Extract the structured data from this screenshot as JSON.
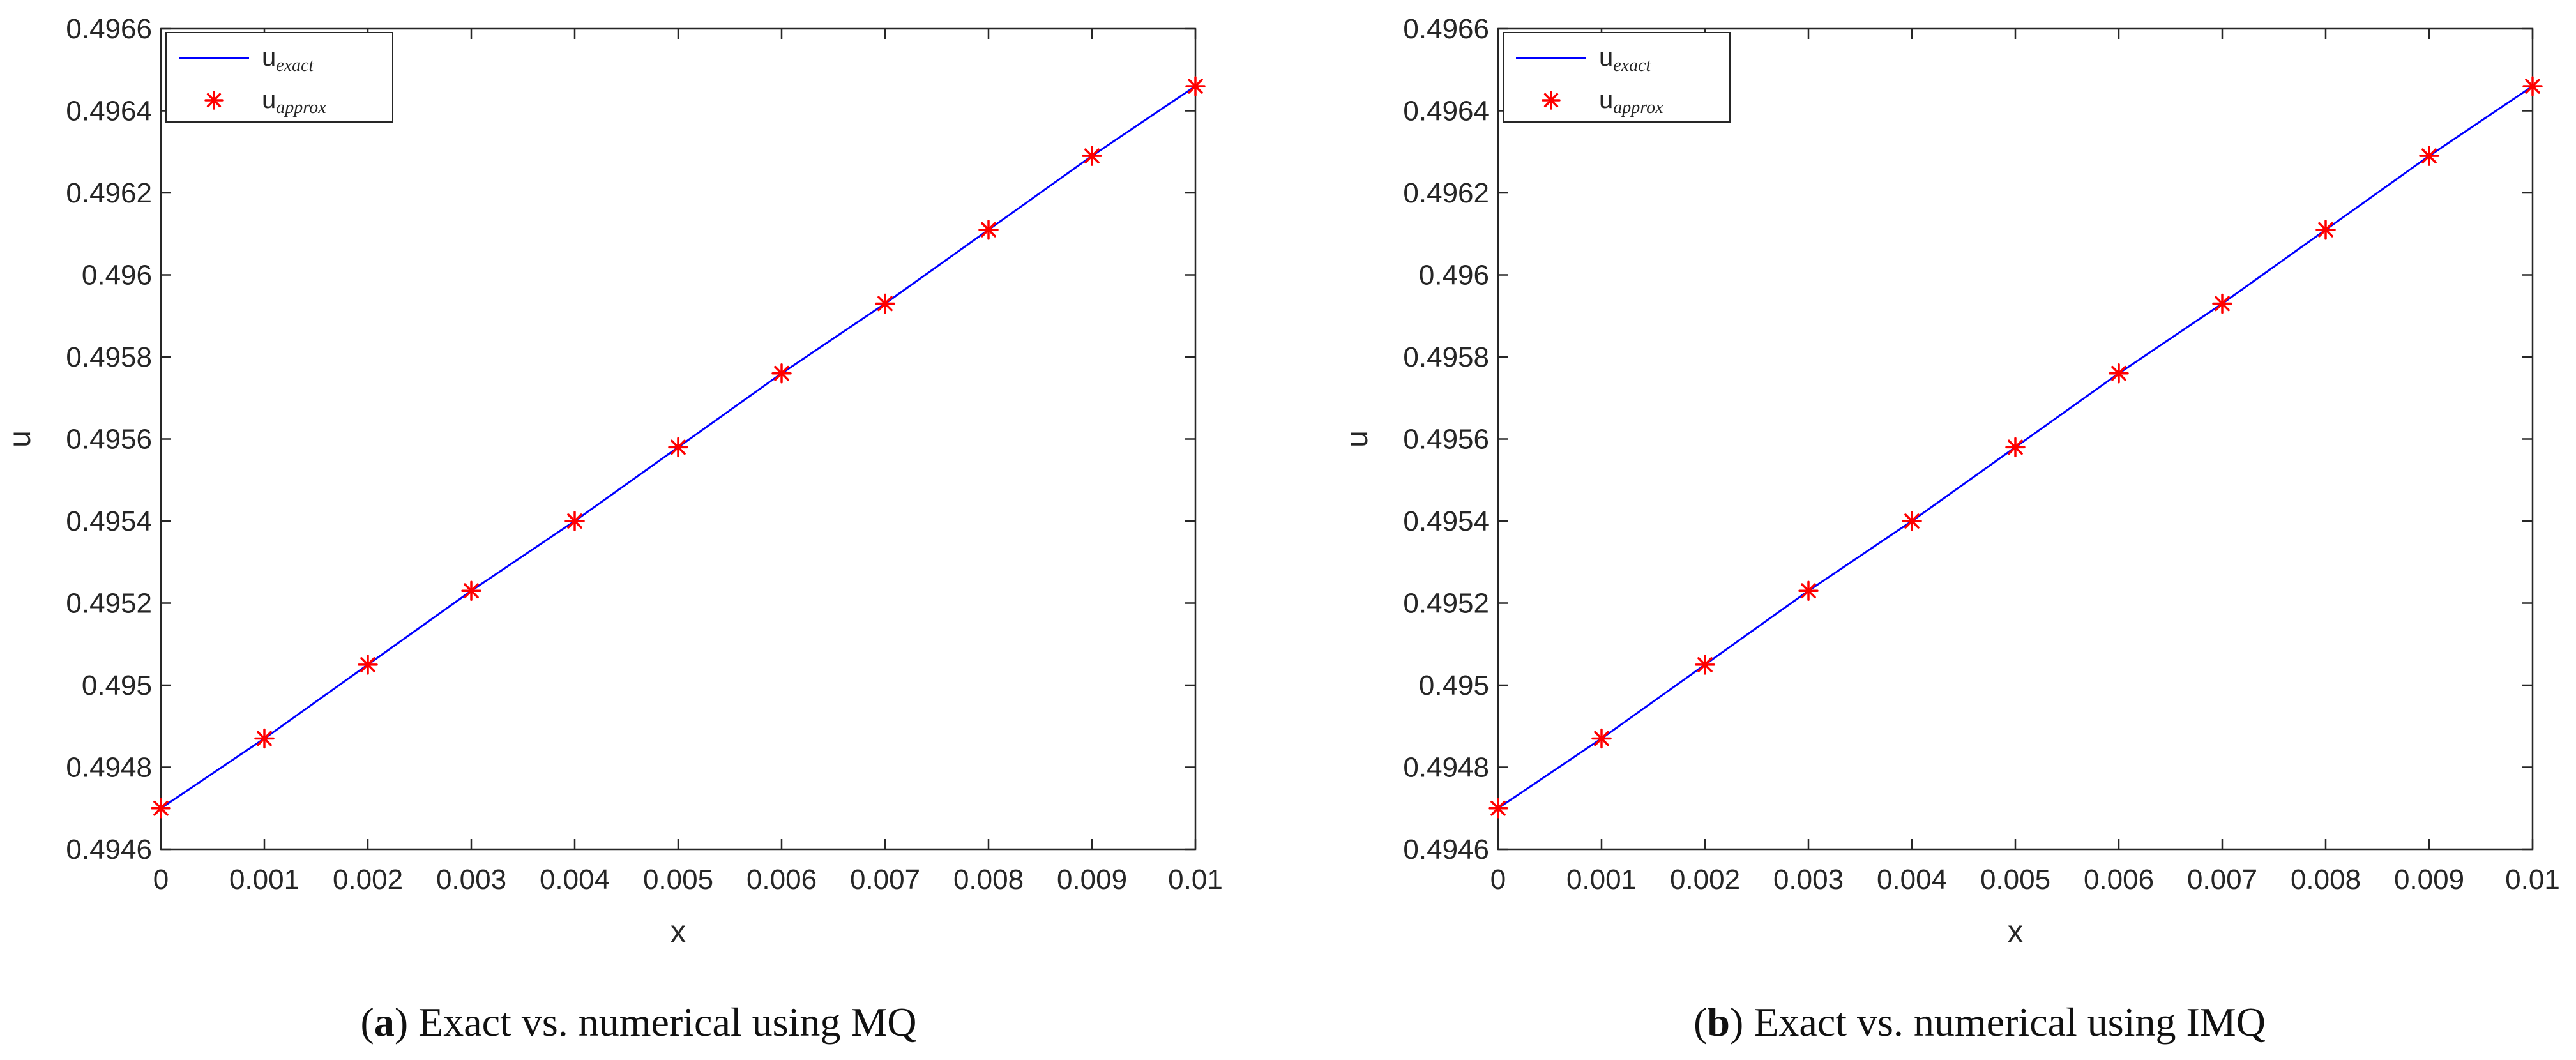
{
  "chart_data": [
    {
      "type": "line",
      "panel_letter": "a",
      "caption": "Exact vs. numerical using MQ",
      "xlabel": "x",
      "ylabel": "u",
      "xlim": [
        0,
        0.01
      ],
      "ylim": [
        0.4946,
        0.4966
      ],
      "x_ticks": [
        "0",
        "0.001",
        "0.002",
        "0.003",
        "0.004",
        "0.005",
        "0.006",
        "0.007",
        "0.008",
        "0.009",
        "0.01"
      ],
      "y_ticks": [
        "0.4946",
        "0.4948",
        "0.495",
        "0.4952",
        "0.4954",
        "0.4956",
        "0.4958",
        "0.496",
        "0.4962",
        "0.4964",
        "0.4966"
      ],
      "legend": {
        "position": "top-left",
        "entries": [
          {
            "base": "u",
            "sub": "exact"
          },
          {
            "base": "u",
            "sub": "approx"
          }
        ]
      },
      "series": [
        {
          "name": "u_exact",
          "style": "line",
          "color": "#0000ff",
          "x": [
            0,
            0.001,
            0.002,
            0.003,
            0.004,
            0.005,
            0.006,
            0.007,
            0.008,
            0.009,
            0.01
          ],
          "values": [
            0.4947,
            0.49487,
            0.49505,
            0.49523,
            0.4954,
            0.49558,
            0.49576,
            0.49593,
            0.49611,
            0.49629,
            0.49646
          ]
        },
        {
          "name": "u_approx",
          "style": "marker",
          "marker": "*",
          "color": "#ff0000",
          "x": [
            0,
            0.001,
            0.002,
            0.003,
            0.004,
            0.005,
            0.006,
            0.007,
            0.008,
            0.009,
            0.01
          ],
          "values": [
            0.4947,
            0.49487,
            0.49505,
            0.49523,
            0.4954,
            0.49558,
            0.49576,
            0.49593,
            0.49611,
            0.49629,
            0.49646
          ]
        }
      ]
    },
    {
      "type": "line",
      "panel_letter": "b",
      "caption": "Exact vs. numerical using IMQ",
      "xlabel": "x",
      "ylabel": "u",
      "xlim": [
        0,
        0.01
      ],
      "ylim": [
        0.4946,
        0.4966
      ],
      "x_ticks": [
        "0",
        "0.001",
        "0.002",
        "0.003",
        "0.004",
        "0.005",
        "0.006",
        "0.007",
        "0.008",
        "0.009",
        "0.01"
      ],
      "y_ticks": [
        "0.4946",
        "0.4948",
        "0.495",
        "0.4952",
        "0.4954",
        "0.4956",
        "0.4958",
        "0.496",
        "0.4962",
        "0.4964",
        "0.4966"
      ],
      "legend": {
        "position": "top-left",
        "entries": [
          {
            "base": "u",
            "sub": "exact"
          },
          {
            "base": "u",
            "sub": "approx"
          }
        ]
      },
      "series": [
        {
          "name": "u_exact",
          "style": "line",
          "color": "#0000ff",
          "x": [
            0,
            0.001,
            0.002,
            0.003,
            0.004,
            0.005,
            0.006,
            0.007,
            0.008,
            0.009,
            0.01
          ],
          "values": [
            0.4947,
            0.49487,
            0.49505,
            0.49523,
            0.4954,
            0.49558,
            0.49576,
            0.49593,
            0.49611,
            0.49629,
            0.49646
          ]
        },
        {
          "name": "u_approx",
          "style": "marker",
          "marker": "*",
          "color": "#ff0000",
          "x": [
            0,
            0.001,
            0.002,
            0.003,
            0.004,
            0.005,
            0.006,
            0.007,
            0.008,
            0.009,
            0.01
          ],
          "values": [
            0.4947,
            0.49487,
            0.49505,
            0.49523,
            0.4954,
            0.49558,
            0.49576,
            0.49593,
            0.49611,
            0.49629,
            0.49646
          ]
        }
      ]
    }
  ]
}
